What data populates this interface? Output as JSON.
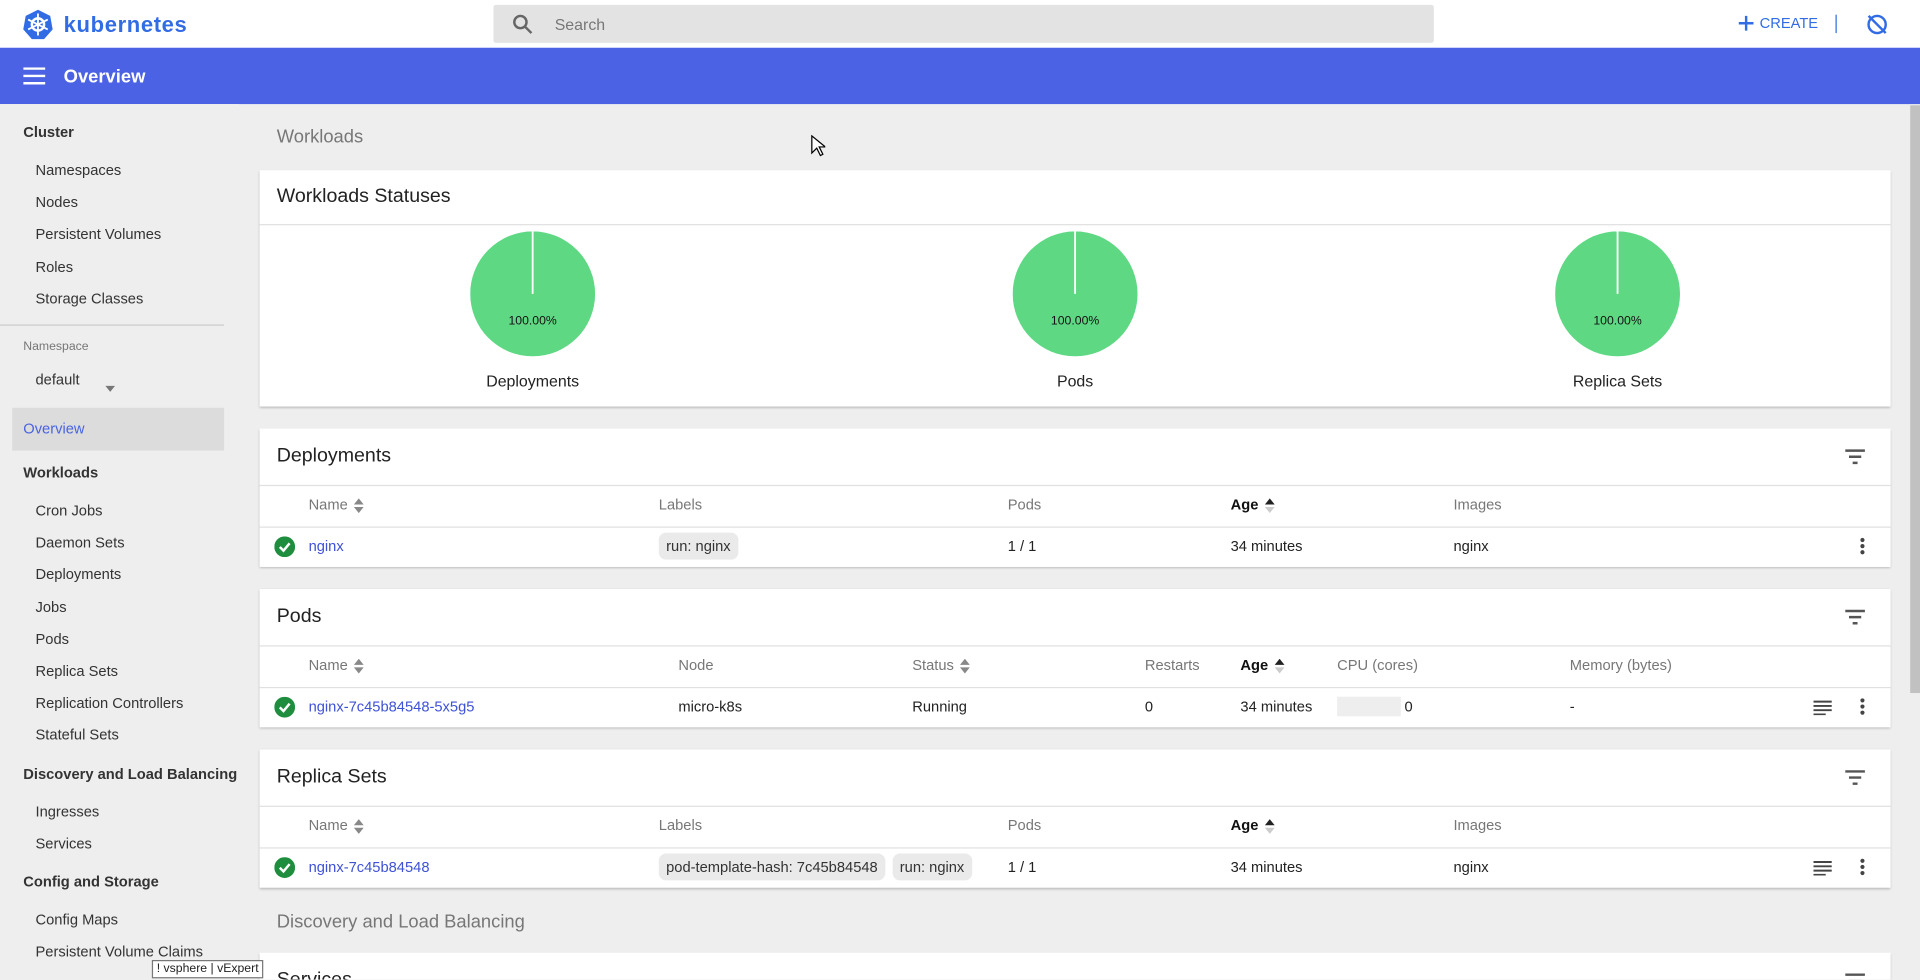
{
  "header": {
    "logo": "kubernetes",
    "search_placeholder": "Search",
    "create": "CREATE"
  },
  "toolbar": {
    "title": "Overview"
  },
  "sidebar": {
    "cluster": {
      "title": "Cluster",
      "items": [
        "Namespaces",
        "Nodes",
        "Persistent Volumes",
        "Roles",
        "Storage Classes"
      ]
    },
    "namespace": {
      "label": "Namespace",
      "value": "default"
    },
    "active": "Overview",
    "groups": [
      {
        "title": "Workloads",
        "items": [
          "Cron Jobs",
          "Daemon Sets",
          "Deployments",
          "Jobs",
          "Pods",
          "Replica Sets",
          "Replication Controllers",
          "Stateful Sets"
        ]
      },
      {
        "title": "Discovery and Load Balancing",
        "items": [
          "Ingresses",
          "Services"
        ]
      },
      {
        "title": "Config and Storage",
        "items": [
          "Config Maps",
          "Persistent Volume Claims"
        ]
      }
    ]
  },
  "main": {
    "workloads_heading": "Workloads",
    "statuses": {
      "title": "Workloads Statuses",
      "items": [
        {
          "label": "Deployments",
          "percent": "100.00%"
        },
        {
          "label": "Pods",
          "percent": "100.00%"
        },
        {
          "label": "Replica Sets",
          "percent": "100.00%"
        }
      ]
    },
    "deployments": {
      "title": "Deployments",
      "columns": [
        "Name",
        "Labels",
        "Pods",
        "Age",
        "Images"
      ],
      "rows": [
        [
          "nginx",
          [
            "run: nginx"
          ],
          "1 / 1",
          "34 minutes",
          "nginx"
        ]
      ]
    },
    "pods": {
      "title": "Pods",
      "columns": [
        "Name",
        "Node",
        "Status",
        "Restarts",
        "Age",
        "CPU (cores)",
        "Memory (bytes)"
      ],
      "rows": [
        [
          "nginx-7c45b84548-5x5g5",
          "micro-k8s",
          "Running",
          "0",
          "34 minutes",
          "0",
          "-"
        ]
      ]
    },
    "replica_sets": {
      "title": "Replica Sets",
      "columns": [
        "Name",
        "Labels",
        "Pods",
        "Age",
        "Images"
      ],
      "rows": [
        [
          "nginx-7c45b84548",
          [
            "pod-template-hash: 7c45b84548",
            "run: nginx"
          ],
          "1 / 1",
          "34 minutes",
          "nginx"
        ]
      ]
    },
    "discovery_heading": "Discovery and Load Balancing",
    "services": {
      "title": "Services"
    }
  },
  "tooltip": "! vsphere | vExpert"
}
